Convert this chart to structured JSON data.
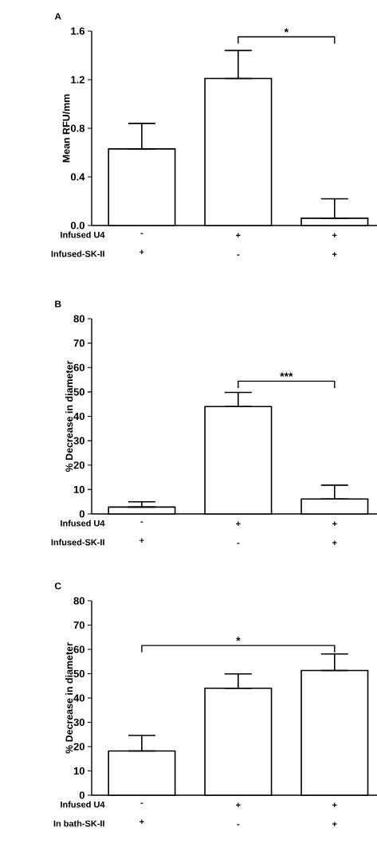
{
  "chart_data": [
    {
      "type": "bar",
      "title": "A",
      "ylabel": "Mean RFU/mm",
      "categories": [
        "- +",
        "+ -",
        "+ +"
      ],
      "values": [
        0.63,
        1.21,
        0.06
      ],
      "errors": [
        [
          0.63,
          0.84
        ],
        [
          1.21,
          1.44
        ],
        [
          0.06,
          0.22
        ]
      ],
      "color": "#ffffff",
      "ylim": [
        0,
        1.6
      ],
      "yticks": [
        {
          "value": 0,
          "label": "0.0"
        },
        0.4,
        0.8,
        1.2,
        1.6
      ],
      "annotations": [
        "*",
        "Infused U4",
        "Infused-SK-II"
      ]
    },
    {
      "type": "bar",
      "title": "B",
      "ylabel": "% Decrease in diameter",
      "categories": [
        "- +",
        "+ -",
        "+ +"
      ],
      "values": [
        2.8,
        44,
        6.1
      ],
      "errors": [
        [
          2.8,
          5.0
        ],
        [
          44,
          49.8
        ],
        [
          6.1,
          11.8
        ]
      ],
      "color": "#ffffff",
      "ylim": [
        0,
        80
      ],
      "yticks": [
        0,
        10,
        20,
        30,
        40,
        50,
        60,
        70,
        80
      ],
      "annotations": [
        "***",
        "Infused U4",
        "Infused-SK-II"
      ]
    },
    {
      "type": "bar",
      "title": "C",
      "ylabel": "% Decrease in diameter",
      "categories": [
        "- +",
        "+ -",
        "+ +"
      ],
      "values": [
        18.2,
        44,
        51.3
      ],
      "errors": [
        [
          18.2,
          24.6
        ],
        [
          44,
          49.9
        ],
        [
          51.3,
          58.1
        ]
      ],
      "color": "#ffffff",
      "ylim": [
        0,
        80
      ],
      "yticks": [
        0,
        10,
        20,
        30,
        40,
        50,
        60,
        70,
        80
      ],
      "annotations": [
        "*",
        "Infused U4",
        "In bath-SK-II"
      ]
    }
  ]
}
